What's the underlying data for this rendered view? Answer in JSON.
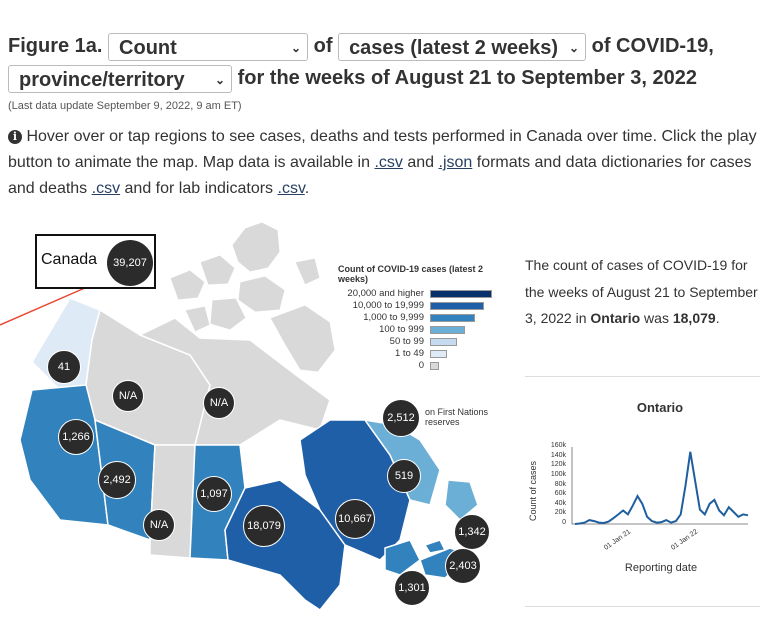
{
  "header": {
    "figure_label": "Figure 1a.",
    "measure_select": "Count",
    "of1": "of",
    "metric_select": "cases (latest 2 weeks)",
    "of2": "of COVID-19,",
    "geo_select": "province/territory",
    "period_text": "for the weeks of August 21 to September 3, 2022"
  },
  "update_text": "(Last data update September 9, 2022, 9 am ET)",
  "info": {
    "icon": "info-icon",
    "t1": "Hover over or tap regions to see cases, deaths and tests performed in Canada over time. Click the play button to animate the map. Map data is available in ",
    "csv1": ".csv",
    "t2": " and ",
    "json1": ".json",
    "t3": " formats and data dictionaries for cases and deaths ",
    "csv2": ".csv",
    "t4": " and for lab indicators ",
    "csv3": ".csv",
    "t5": "."
  },
  "map": {
    "canada_label": "Canada",
    "canada_value": "39,207",
    "first_nations_value": "2,512",
    "first_nations_label_1": "on First Nations",
    "first_nations_label_2": "reserves",
    "colors": {
      "c1": "#deebf7",
      "c2": "#c6dbef",
      "c3": "#6baed6",
      "c4": "#3182bd",
      "c5": "#1e5fa8",
      "c6": "#08306b",
      "na": "#d9d9d9"
    },
    "bubbles": {
      "yt": "41",
      "nt": "N/A",
      "nu": "N/A",
      "bc": "1,266",
      "ab": "2,492",
      "sk": "N/A",
      "mb": "1,097",
      "on": "18,079",
      "qc": "10,667",
      "nl": "519",
      "pe": "1,342",
      "ns": "2,403",
      "nb": "1,301"
    }
  },
  "legend": {
    "title": "Count of COVID-19 cases (latest 2 weeks)",
    "items": [
      {
        "label": "20,000 and higher",
        "color": "#08306b",
        "size": 1.0
      },
      {
        "label": "10,000 to 19,999",
        "color": "#1e5fa8",
        "size": 0.87
      },
      {
        "label": "1,000 to 9,999",
        "color": "#3182bd",
        "size": 0.73
      },
      {
        "label": "100 to 999",
        "color": "#6baed6",
        "size": 0.57
      },
      {
        "label": "50 to 99",
        "color": "#c6dbef",
        "size": 0.43
      },
      {
        "label": "1 to 49",
        "color": "#deebf7",
        "size": 0.28
      },
      {
        "label": "0",
        "color": "#d9d9d9",
        "size": 0.14
      }
    ]
  },
  "summary": {
    "t1": "The count of cases of COVID-19 for the weeks of August 21 to September 3, 2022 in ",
    "region": "Ontario",
    "t2": " was ",
    "value": "18,079",
    "t3": "."
  },
  "chart_data": {
    "type": "line",
    "title": "Ontario",
    "xlabel": "Reporting date",
    "ylabel": "Count of cases",
    "ylim": [
      0,
      160000
    ],
    "yticks": [
      "0",
      "20k",
      "40k",
      "60k",
      "80k",
      "100k",
      "120k",
      "140k",
      "160k"
    ],
    "xticks": [
      "01 Jan 21",
      "01 Jan 22"
    ],
    "series": [
      {
        "name": "Ontario",
        "color": "#1f5fa0",
        "values": [
          0,
          1000,
          3000,
          8000,
          6000,
          3000,
          2000,
          5000,
          12000,
          20000,
          28000,
          20000,
          38000,
          58000,
          42000,
          15000,
          6000,
          3000,
          4000,
          8000,
          3000,
          6000,
          20000,
          80000,
          150000,
          90000,
          30000,
          20000,
          42000,
          50000,
          28000,
          18000,
          35000,
          25000,
          15000,
          20000,
          18000
        ]
      }
    ]
  }
}
